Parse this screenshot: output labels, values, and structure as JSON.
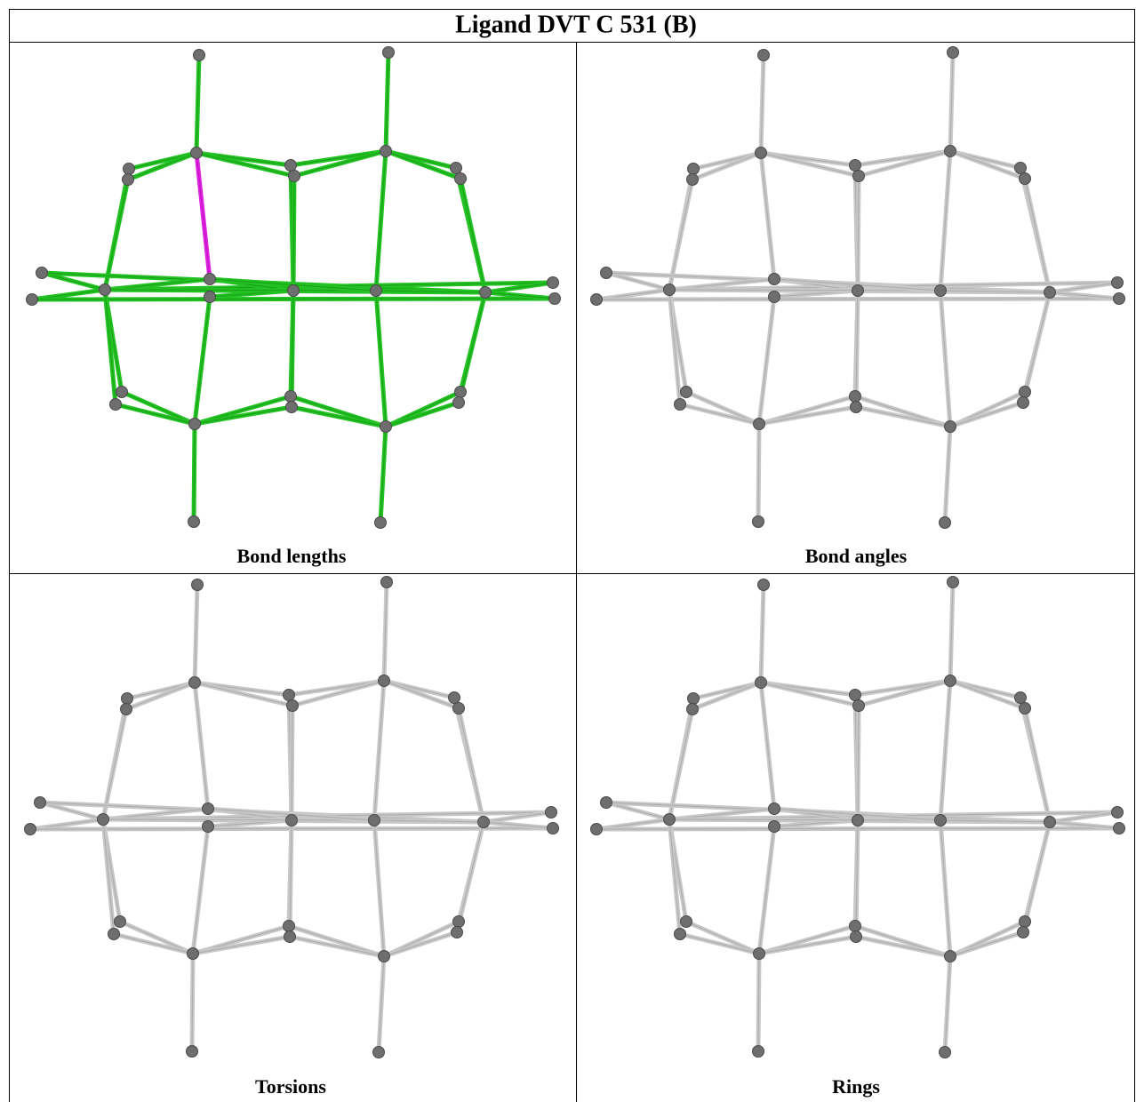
{
  "header": {
    "title": "Ligand DVT C 531 (B)"
  },
  "panels": [
    {
      "caption": "Bond lengths"
    },
    {
      "caption": "Bond angles"
    },
    {
      "caption": "Torsions"
    },
    {
      "caption": "Rings"
    }
  ]
}
